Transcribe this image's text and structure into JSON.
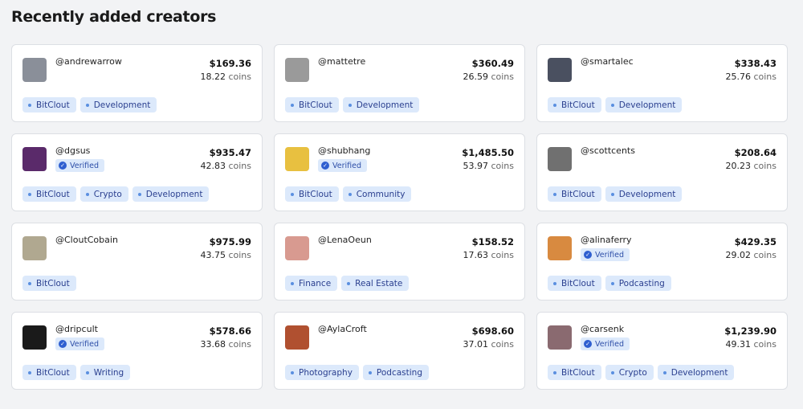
{
  "page_title": "Recently added creators",
  "coins_unit": "coins",
  "verified_label": "Verified",
  "creators": [
    {
      "username": "@andrewarrow",
      "price": "$169.36",
      "coins": "18.22",
      "verified": false,
      "tags": [
        "BitClout",
        "Development"
      ],
      "avatar_color": "#8a8f99"
    },
    {
      "username": "@mattetre",
      "price": "$360.49",
      "coins": "26.59",
      "verified": false,
      "tags": [
        "BitClout",
        "Development"
      ],
      "avatar_color": "#9a9a9a"
    },
    {
      "username": "@smartalec",
      "price": "$338.43",
      "coins": "25.76",
      "verified": false,
      "tags": [
        "BitClout",
        "Development"
      ],
      "avatar_color": "#4a5060"
    },
    {
      "username": "@dgsus",
      "price": "$935.47",
      "coins": "42.83",
      "verified": true,
      "tags": [
        "BitClout",
        "Crypto",
        "Development"
      ],
      "avatar_color": "#5a2a6a"
    },
    {
      "username": "@shubhang",
      "price": "$1,485.50",
      "coins": "53.97",
      "verified": true,
      "tags": [
        "BitClout",
        "Community"
      ],
      "avatar_color": "#e8c040"
    },
    {
      "username": "@scottcents",
      "price": "$208.64",
      "coins": "20.23",
      "verified": false,
      "tags": [
        "BitClout",
        "Development"
      ],
      "avatar_color": "#707070"
    },
    {
      "username": "@CloutCobain",
      "price": "$975.99",
      "coins": "43.75",
      "verified": false,
      "tags": [
        "BitClout"
      ],
      "avatar_color": "#b0a890"
    },
    {
      "username": "@LenaOeun",
      "price": "$158.52",
      "coins": "17.63",
      "verified": false,
      "tags": [
        "Finance",
        "Real Estate"
      ],
      "avatar_color": "#d89a90"
    },
    {
      "username": "@alinaferry",
      "price": "$429.35",
      "coins": "29.02",
      "verified": true,
      "tags": [
        "BitClout",
        "Podcasting"
      ],
      "avatar_color": "#d88a40"
    },
    {
      "username": "@dripcult",
      "price": "$578.66",
      "coins": "33.68",
      "verified": true,
      "tags": [
        "BitClout",
        "Writing"
      ],
      "avatar_color": "#1a1a1a"
    },
    {
      "username": "@AylaCroft",
      "price": "$698.60",
      "coins": "37.01",
      "verified": false,
      "tags": [
        "Photography",
        "Podcasting"
      ],
      "avatar_color": "#b05030"
    },
    {
      "username": "@carsenk",
      "price": "$1,239.90",
      "coins": "49.31",
      "verified": true,
      "tags": [
        "BitClout",
        "Crypto",
        "Development"
      ],
      "avatar_color": "#8a6a70"
    }
  ]
}
